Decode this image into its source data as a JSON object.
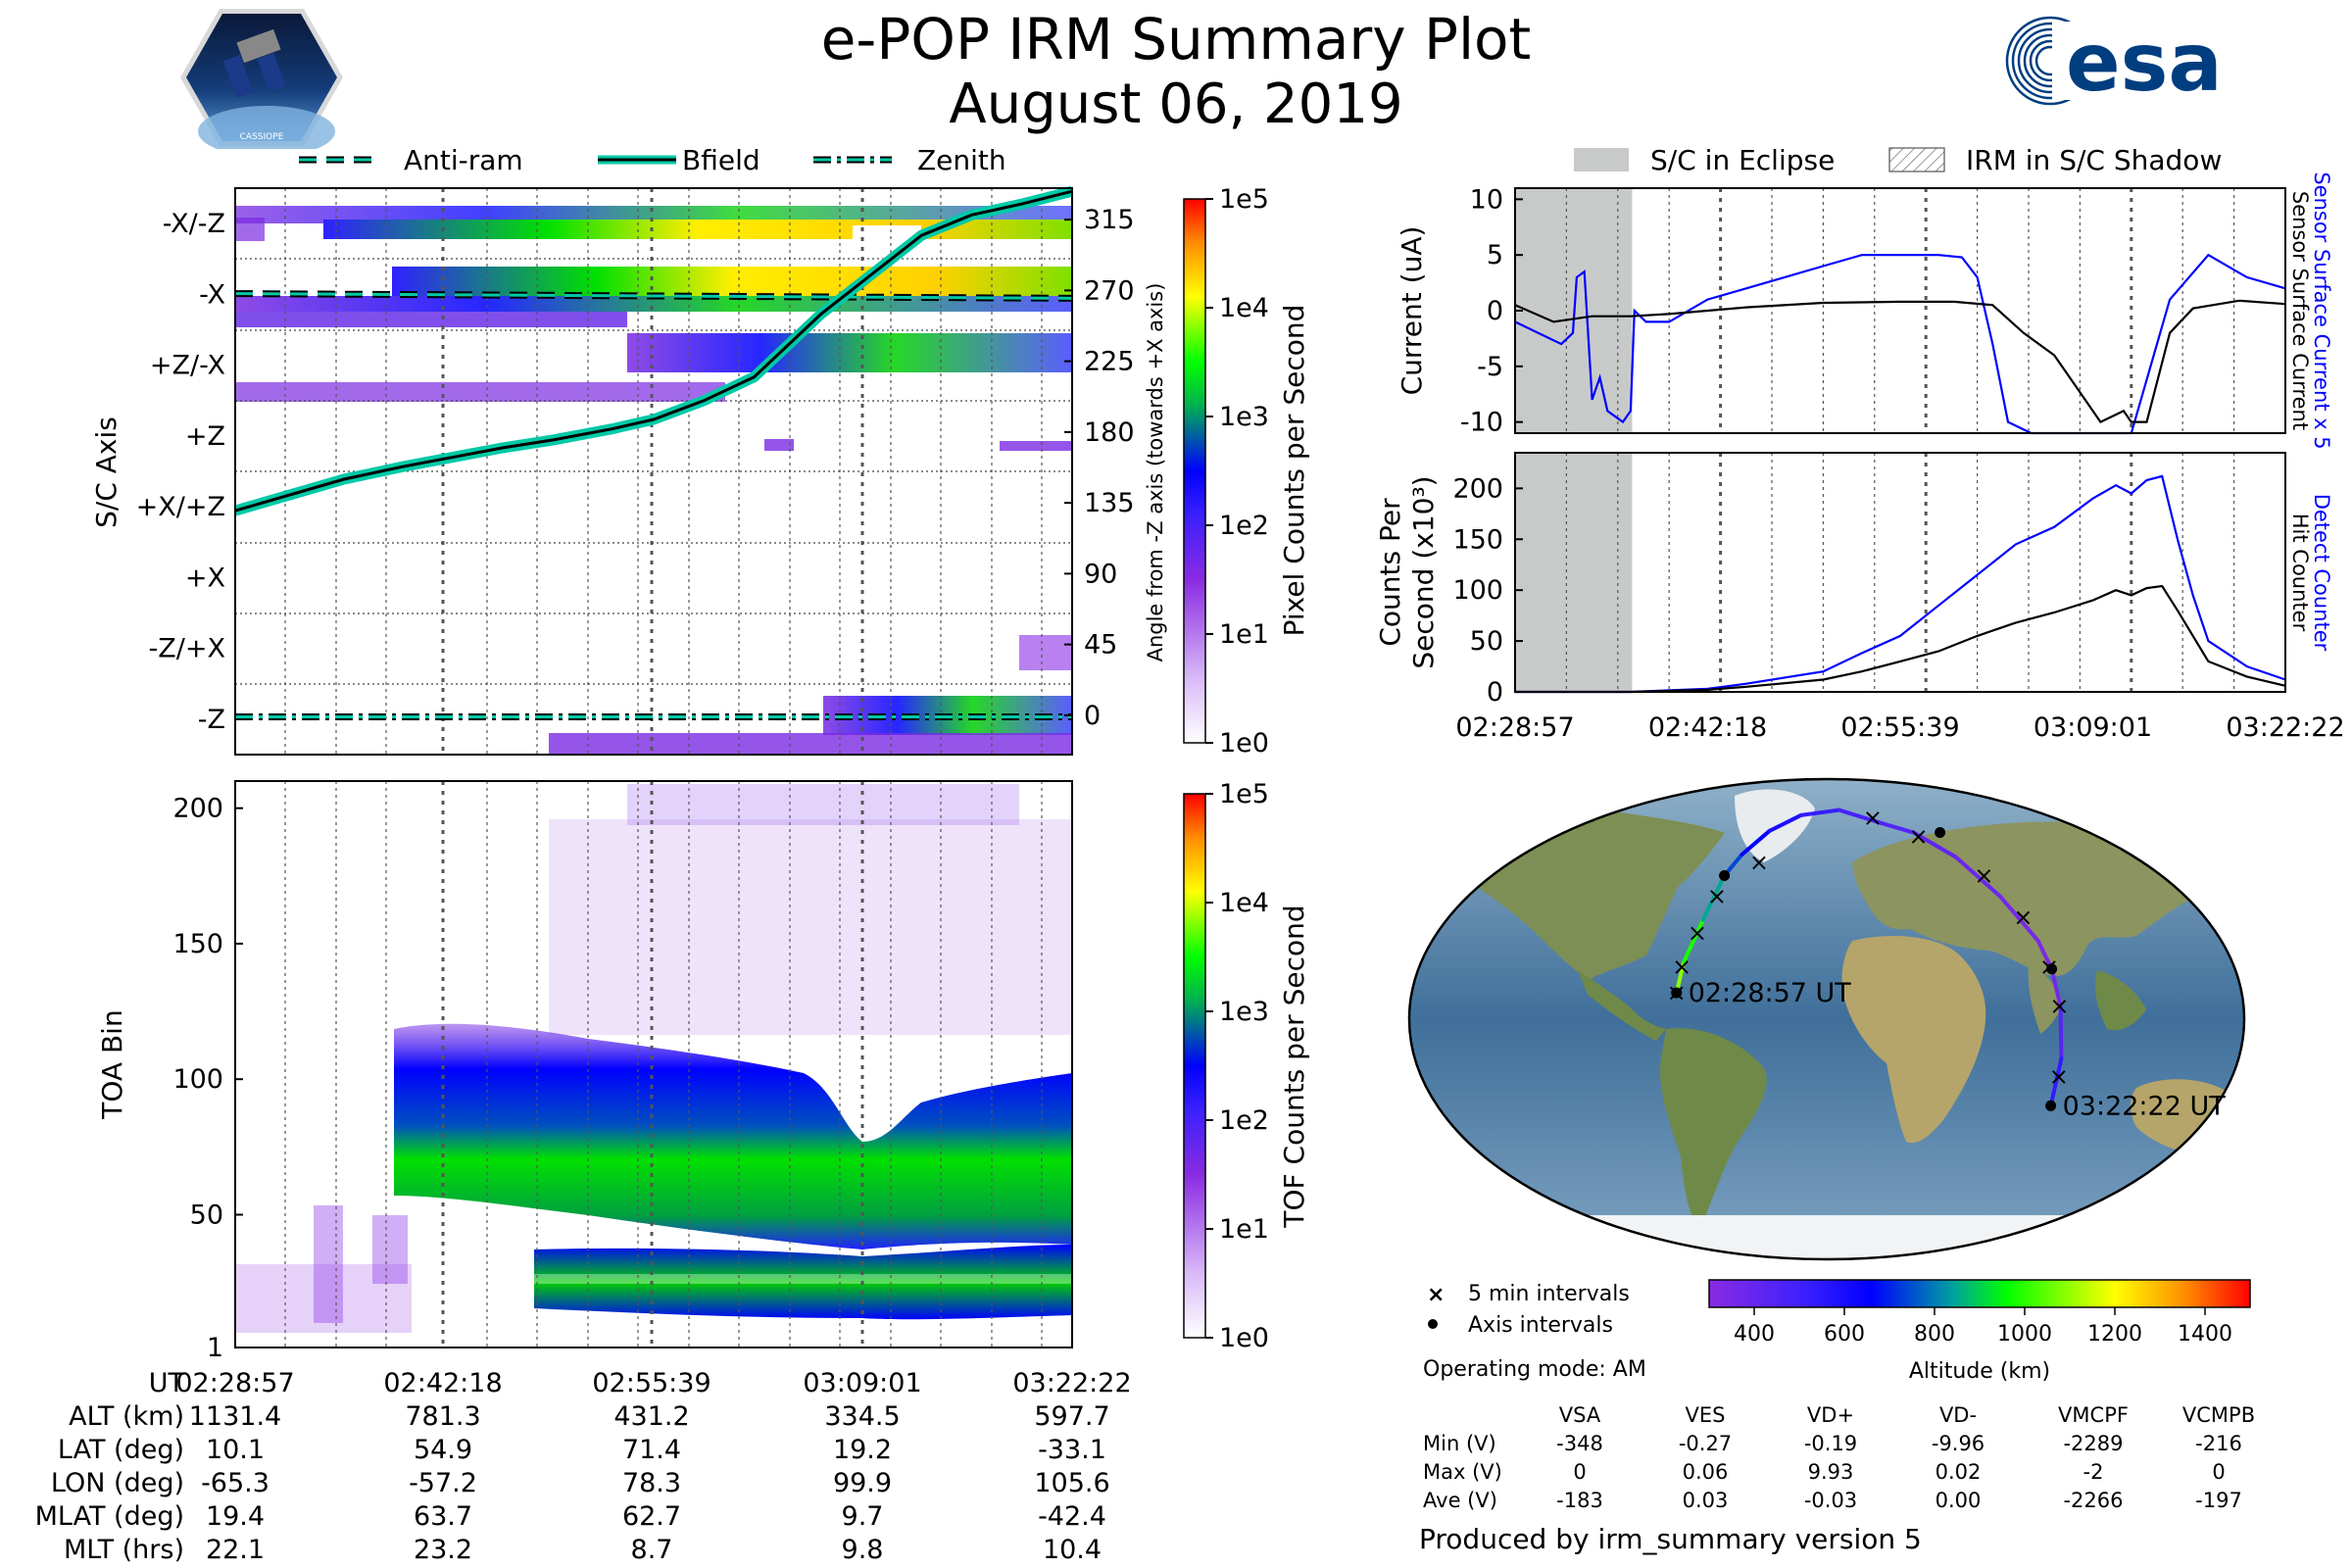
{
  "header": {
    "title": "e-POP IRM Summary Plot",
    "date": "August 06, 2019",
    "left_logo_text": "CASSIOPE",
    "right_logo_text": "esa"
  },
  "colors": {
    "bfield": "#00c9a7",
    "accent_blue": "#0000ff",
    "eclipse_gray": "#c8caca"
  },
  "chart_data": [
    {
      "id": "pixel-spectrogram",
      "type": "heatmap",
      "ylabel": "S/C Axis",
      "y_categories": [
        "-X/-Z",
        "-X",
        "+Z/-X",
        "+Z",
        "+X/+Z",
        "+X",
        "-Z/+X",
        "-Z"
      ],
      "right_ylabel": "Angle from -Z axis (towards +X axis)",
      "right_ticks": [
        315,
        270,
        225,
        180,
        135,
        90,
        45,
        0
      ],
      "right_ylim": [
        -25,
        335
      ],
      "legend": [
        "Anti-ram",
        "Bfield",
        "Zenith"
      ],
      "bfield_angle": {
        "t": [
          0.0,
          0.13,
          0.2,
          0.28,
          0.32,
          0.38,
          0.45,
          0.5,
          0.56,
          0.62,
          0.66,
          0.7,
          0.76,
          0.82,
          0.88,
          0.94,
          1.0
        ],
        "angle": [
          130,
          150,
          158,
          166,
          170,
          175,
          182,
          188,
          200,
          215,
          235,
          255,
          280,
          305,
          318,
          325,
          333
        ]
      },
      "antiram_angle": 268,
      "zenith_angle": -1,
      "colorbar": {
        "label": "Pixel Counts per Second",
        "ticks": [
          "1e5",
          "1e4",
          "1e3",
          "1e2",
          "1e1",
          "1e0"
        ]
      }
    },
    {
      "id": "tof-spectrogram",
      "type": "heatmap",
      "ylabel": "TOA Bin",
      "yticks": [
        200,
        150,
        100,
        50,
        1
      ],
      "ylim": [
        1,
        210
      ],
      "colorbar": {
        "label": "TOF Counts per Second",
        "ticks": [
          "1e5",
          "1e4",
          "1e3",
          "1e2",
          "1e1",
          "1e0"
        ]
      },
      "xtick_labels": [
        "02:28:57",
        "02:42:18",
        "02:55:39",
        "03:09:01",
        "03:22:22"
      ]
    },
    {
      "id": "current-plot",
      "type": "line",
      "ylabel": "Current (uA)",
      "yticks": [
        10,
        5,
        0,
        -5,
        -10
      ],
      "ylim": [
        -11,
        11
      ],
      "right_labels": [
        "Sensor Surface Current x 5",
        "Sensor Surface Current"
      ],
      "legend": [
        "S/C in Eclipse",
        "IRM in S/C Shadow"
      ],
      "eclipse_range": [
        0.0,
        0.152
      ],
      "series": [
        {
          "name": "Sensor Surface Current x 5",
          "color": "#0000ff",
          "t": [
            0.0,
            0.03,
            0.06,
            0.075,
            0.08,
            0.09,
            0.1,
            0.11,
            0.12,
            0.14,
            0.15,
            0.155,
            0.17,
            0.2,
            0.25,
            0.3,
            0.35,
            0.4,
            0.44,
            0.45,
            0.5,
            0.55,
            0.58,
            0.6,
            0.62,
            0.64,
            0.67,
            0.8,
            0.85,
            0.9,
            0.95,
            1.0
          ],
          "values": [
            -1,
            -2,
            -3,
            -2,
            3,
            3.5,
            -8,
            -6,
            -9,
            -10,
            -9,
            0,
            -1,
            -1,
            1,
            2,
            3,
            4,
            4.8,
            5,
            5,
            5,
            4.8,
            3,
            -3,
            -10,
            -11,
            -11,
            1,
            5,
            3,
            2
          ]
        },
        {
          "name": "Sensor Surface Current",
          "color": "#000000",
          "t": [
            0.0,
            0.05,
            0.1,
            0.15,
            0.2,
            0.3,
            0.4,
            0.5,
            0.57,
            0.62,
            0.66,
            0.7,
            0.73,
            0.76,
            0.79,
            0.8,
            0.82,
            0.85,
            0.88,
            0.94,
            1.0
          ],
          "values": [
            0.5,
            -1,
            -0.5,
            -0.5,
            -0.3,
            0.3,
            0.7,
            0.8,
            0.8,
            0.5,
            -2,
            -4,
            -7,
            -10,
            -9,
            -10,
            -10,
            -2,
            0.2,
            0.9,
            0.6
          ]
        }
      ]
    },
    {
      "id": "counts-plot",
      "type": "line",
      "ylabel": "Counts Per Second (x10³)",
      "yticks": [
        200,
        150,
        100,
        50,
        0
      ],
      "ylim": [
        0,
        235
      ],
      "right_labels": [
        "Detect Counter",
        "Hit Counter"
      ],
      "xtick_labels": [
        "02:28:57",
        "02:42:18",
        "02:55:39",
        "03:09:01",
        "03:22:22"
      ],
      "series": [
        {
          "name": "Detect Counter",
          "color": "#0000ff",
          "t": [
            0.0,
            0.15,
            0.25,
            0.3,
            0.4,
            0.45,
            0.5,
            0.55,
            0.6,
            0.65,
            0.7,
            0.75,
            0.78,
            0.8,
            0.82,
            0.84,
            0.86,
            0.88,
            0.9,
            0.95,
            1.0
          ],
          "values": [
            0,
            0,
            3,
            8,
            20,
            38,
            55,
            85,
            115,
            145,
            162,
            190,
            203,
            195,
            208,
            212,
            150,
            95,
            50,
            25,
            12
          ]
        },
        {
          "name": "Hit Counter",
          "color": "#000000",
          "t": [
            0.0,
            0.15,
            0.25,
            0.3,
            0.4,
            0.45,
            0.5,
            0.55,
            0.6,
            0.65,
            0.7,
            0.75,
            0.78,
            0.8,
            0.82,
            0.84,
            0.86,
            0.88,
            0.9,
            0.95,
            1.0
          ],
          "values": [
            0,
            0,
            2,
            5,
            12,
            20,
            30,
            40,
            55,
            68,
            78,
            90,
            100,
            95,
            102,
            104,
            80,
            55,
            30,
            15,
            6
          ]
        }
      ]
    },
    {
      "id": "orbit-map",
      "type": "scatter",
      "projection": "Robinson",
      "start_label": "02:28:57 UT",
      "end_label": "03:22:22 UT",
      "track": {
        "lon": [
          -65.3,
          -64,
          -60,
          -57.2,
          -52,
          -40,
          -20,
          10,
          40,
          60,
          78.3,
          90,
          98,
          99.9,
          101,
          103,
          105.6
        ],
        "lat": [
          10.1,
          22,
          38,
          54.9,
          63,
          72,
          78,
          80,
          75,
          71.4,
          62,
          47,
          30,
          19.2,
          5,
          -15,
          -33.1
        ],
        "altitude_km": [
          1131.4,
          1050,
          920,
          781.3,
          700,
          620,
          560,
          500,
          460,
          431.2,
          400,
          370,
          345,
          334.5,
          380,
          480,
          597.7
        ]
      },
      "five_min_points": {
        "lon": [
          -65.3,
          -64.5,
          -61,
          -57,
          -40,
          35,
          62,
          88,
          96,
          99,
          100.5,
          104
        ],
        "lat": [
          10.1,
          20,
          33,
          47,
          60,
          77,
          70,
          55,
          39,
          20,
          5,
          -22
        ]
      },
      "axis_points": {
        "lon": [
          -65.3,
          -57.2,
          78.3,
          99.9,
          105.6
        ],
        "lat": [
          10.1,
          54.9,
          71.4,
          19.2,
          -33.1
        ]
      },
      "legend_5min": "5 min intervals",
      "legend_axis": "Axis intervals",
      "colorbar": {
        "label": "Altitude (km)",
        "ticks": [
          400,
          600,
          800,
          1000,
          1200,
          1400
        ],
        "range": [
          300,
          1500
        ]
      }
    }
  ],
  "ephemeris": {
    "rows": [
      {
        "label": "UT",
        "values": [
          "02:28:57",
          "02:42:18",
          "02:55:39",
          "03:09:01",
          "03:22:22"
        ]
      },
      {
        "label": "ALT (km)",
        "values": [
          "1131.4",
          "781.3",
          "431.2",
          "334.5",
          "597.7"
        ]
      },
      {
        "label": "LAT (deg)",
        "values": [
          "10.1",
          "54.9",
          "71.4",
          "19.2",
          "-33.1"
        ]
      },
      {
        "label": "LON (deg)",
        "values": [
          "-65.3",
          "-57.2",
          "78.3",
          "99.9",
          "105.6"
        ]
      },
      {
        "label": "MLAT (deg)",
        "values": [
          "19.4",
          "63.7",
          "62.7",
          "9.7",
          "-42.4"
        ]
      },
      {
        "label": "MLT (hrs)",
        "values": [
          "22.1",
          "23.2",
          "8.7",
          "9.8",
          "10.4"
        ]
      }
    ]
  },
  "operating_mode": "Operating mode: AM",
  "voltage_table": {
    "headers": [
      "",
      "VSA",
      "VES",
      "VD+",
      "VD-",
      "VMCPF",
      "VCMPB"
    ],
    "rows": [
      [
        "Min (V)",
        "-348",
        "-0.27",
        "-0.19",
        "-9.96",
        "-2289",
        "-216"
      ],
      [
        "Max (V)",
        "0",
        "0.06",
        "9.93",
        "0.02",
        "-2",
        "0"
      ],
      [
        "Ave (V)",
        "-183",
        "0.03",
        "-0.03",
        "0.00",
        "-2266",
        "-197"
      ]
    ]
  },
  "footer": "Produced by irm_summary version 5"
}
